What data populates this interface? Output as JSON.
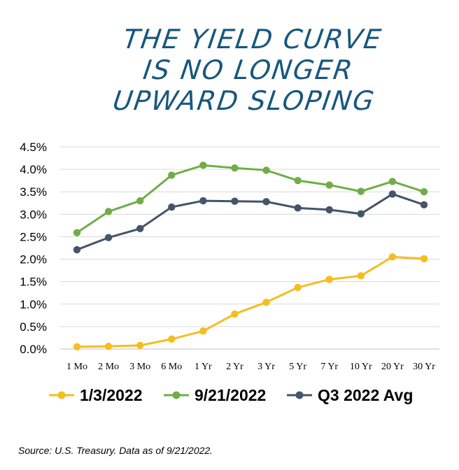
{
  "title_lines": [
    "THE YIELD CURVE",
    "IS NO LONGER",
    "UPWARD SLOPING"
  ],
  "source": "Source: U.S. Treasury. Data as of 9/21/2022.",
  "chart_data": {
    "type": "line",
    "title": "THE YIELD CURVE IS NO LONGER UPWARD SLOPING",
    "xlabel": "",
    "ylabel": "",
    "categories": [
      "1 Mo",
      "2 Mo",
      "3 Mo",
      "6 Mo",
      "1 Yr",
      "2 Yr",
      "3 Yr",
      "5 Yr",
      "7 Yr",
      "10 Yr",
      "20 Yr",
      "30 Yr"
    ],
    "yticks": [
      "0.0%",
      "0.5%",
      "1.0%",
      "1.5%",
      "2.0%",
      "2.5%",
      "3.0%",
      "3.5%",
      "4.0%",
      "4.5%"
    ],
    "ylim": [
      0,
      4.5
    ],
    "grid": true,
    "legend_position": "bottom",
    "series": [
      {
        "name": "1/3/2022",
        "color": "#f5bd1f",
        "values": [
          0.05,
          0.06,
          0.08,
          0.22,
          0.4,
          0.78,
          1.04,
          1.37,
          1.55,
          1.63,
          2.05,
          2.01
        ]
      },
      {
        "name": "9/21/2022",
        "color": "#70ad47",
        "values": [
          2.59,
          3.06,
          3.3,
          3.87,
          4.09,
          4.03,
          3.98,
          3.75,
          3.65,
          3.51,
          3.73,
          3.5
        ]
      },
      {
        "name": "Q3 2022 Avg",
        "color": "#44546a",
        "values": [
          2.21,
          2.48,
          2.68,
          3.16,
          3.3,
          3.29,
          3.28,
          3.14,
          3.1,
          3.01,
          3.45,
          3.21
        ]
      }
    ]
  }
}
